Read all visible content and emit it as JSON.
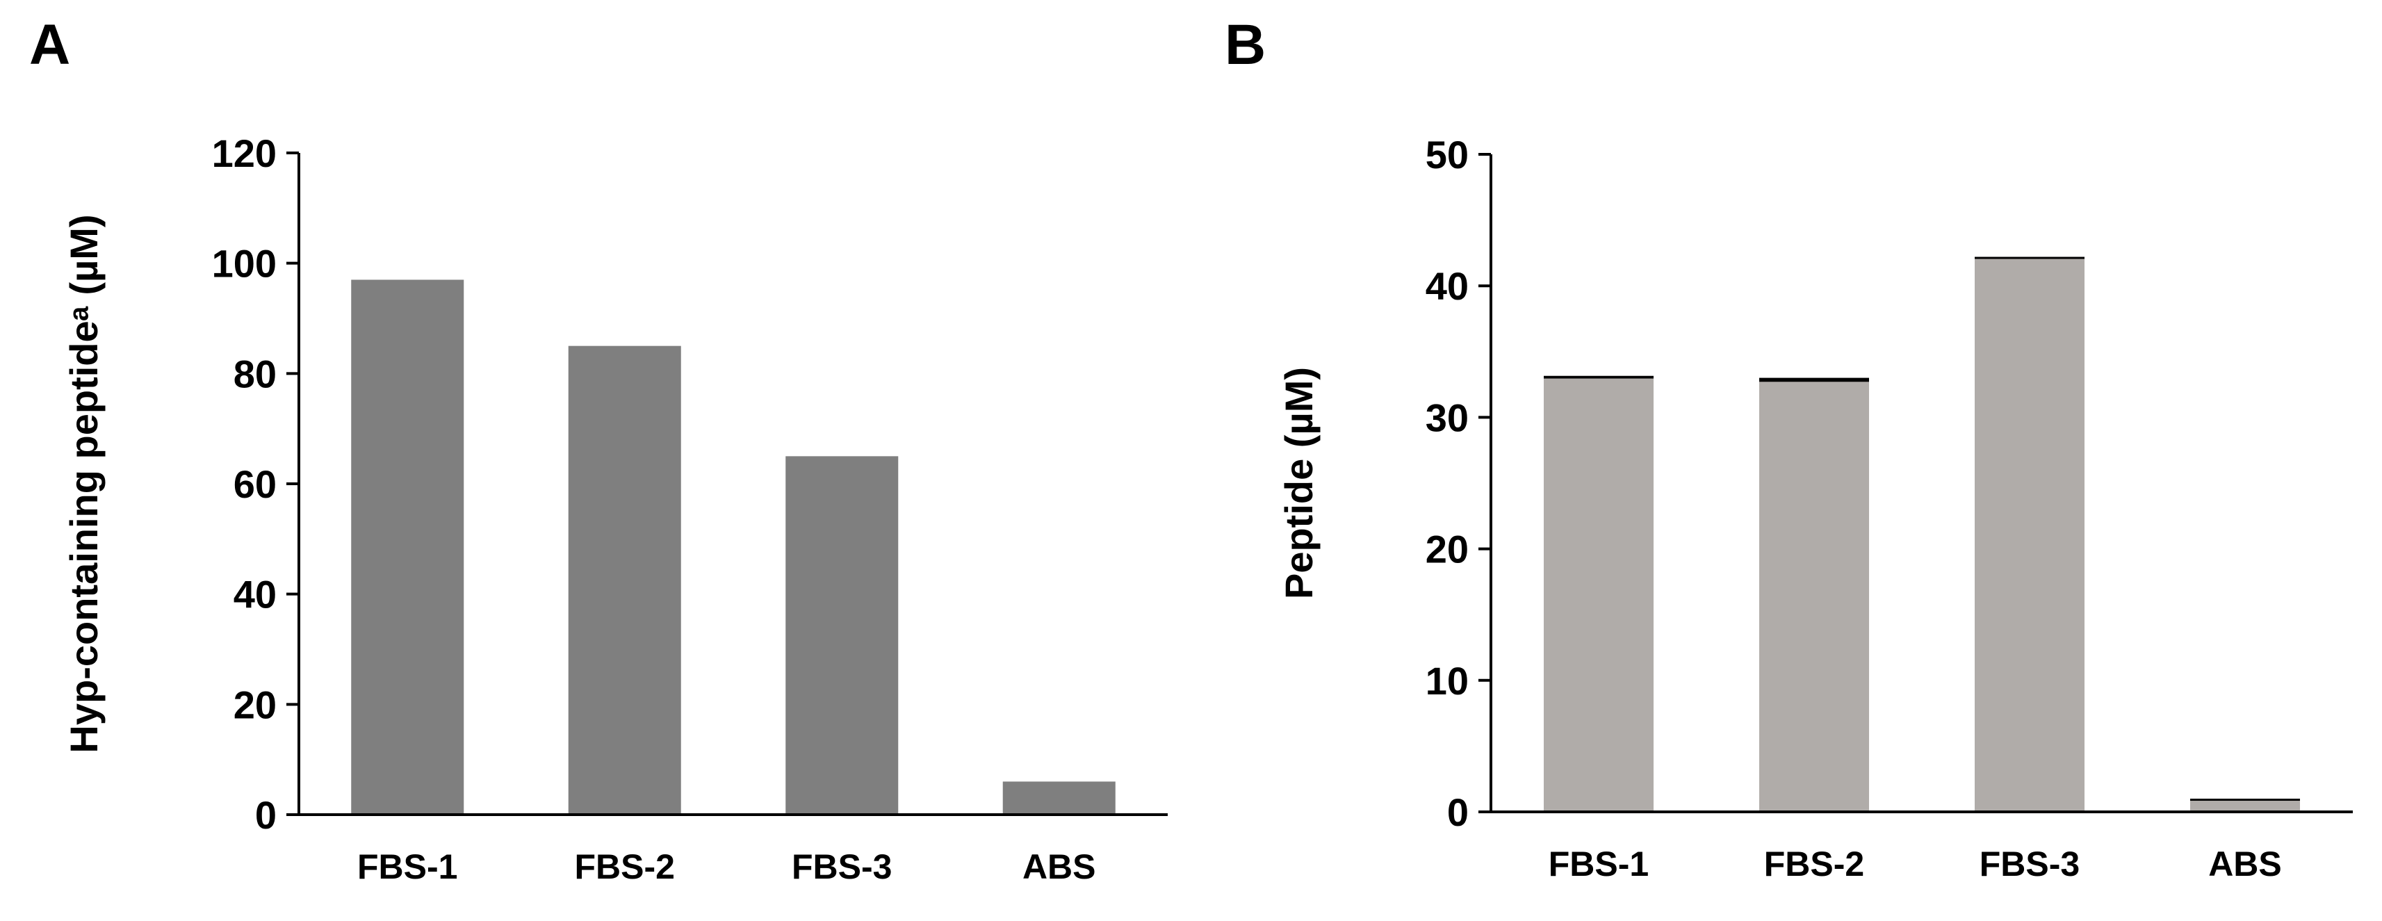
{
  "panels": [
    {
      "letter": "A"
    },
    {
      "letter": "B"
    }
  ],
  "chart_data": [
    {
      "type": "bar",
      "categories": [
        "FBS-1",
        "FBS-2",
        "FBS-3",
        "ABS"
      ],
      "values": [
        97,
        85,
        65,
        6
      ],
      "ylabel": "Hyp-containing peptideᵃ (µM)",
      "xlabel": "",
      "ylim": [
        0,
        120
      ],
      "yticks": [
        0,
        20,
        40,
        60,
        80,
        100,
        120
      ],
      "bar_color": "#7f7f7f",
      "grid": false
    },
    {
      "type": "bar",
      "categories": [
        "FBS-1",
        "FBS-2",
        "FBS-3",
        "ABS"
      ],
      "values": [
        33,
        32.8,
        42.1,
        0.9
      ],
      "error": [
        0.1,
        0.15,
        0.05,
        0.05
      ],
      "ylabel": "Peptide (µM)",
      "xlabel": "",
      "ylim": [
        0,
        50
      ],
      "yticks": [
        0,
        10,
        20,
        30,
        40,
        50
      ],
      "bar_color": "#b0aca9",
      "grid": false
    }
  ]
}
